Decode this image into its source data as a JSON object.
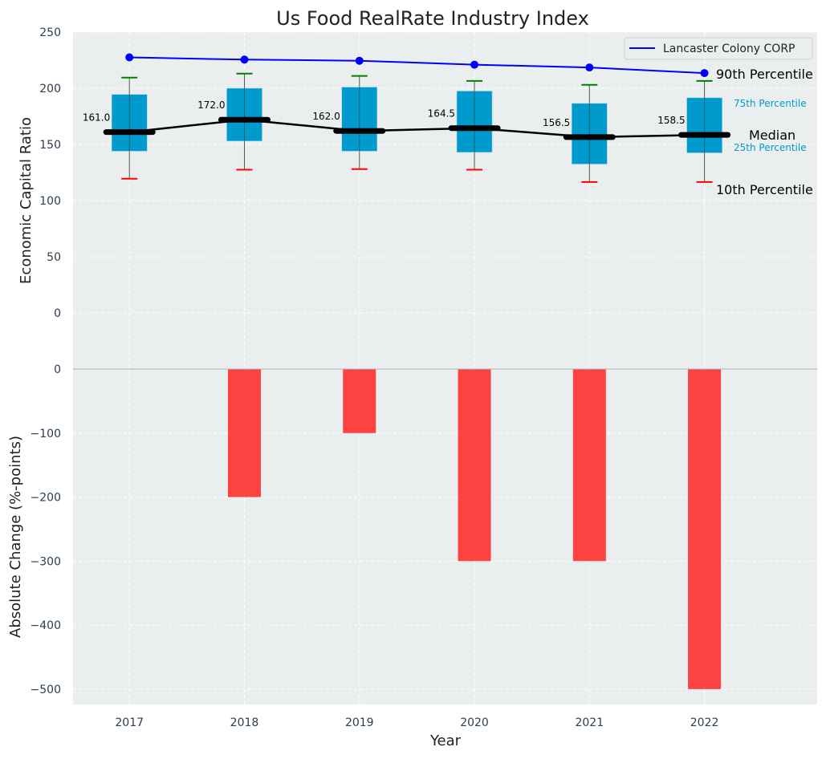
{
  "chart_data": [
    {
      "type": "box",
      "title": "Us Food RealRate Industry Index",
      "ylabel": "Economic Capital Ratio",
      "ylim": [
        -50,
        250
      ],
      "yticks": [
        0,
        50,
        100,
        150,
        200,
        250
      ],
      "categories": [
        "2017",
        "2018",
        "2019",
        "2020",
        "2021",
        "2022"
      ],
      "p10": [
        119.5,
        127.5,
        128,
        127.5,
        116.5,
        116.5
      ],
      "p25": [
        144,
        153,
        144,
        143,
        132.5,
        142.5
      ],
      "median": [
        161.0,
        172.0,
        162.0,
        164.5,
        156.5,
        158.5
      ],
      "median_labels": [
        "161.0",
        "172.0",
        "162.0",
        "164.5",
        "156.5",
        "158.5"
      ],
      "p75": [
        194.5,
        200,
        201,
        197.5,
        186.5,
        191.5
      ],
      "p90": [
        209.5,
        213,
        211,
        206.5,
        203,
        206.5
      ],
      "series": [
        {
          "name": "Lancaster Colony CORP",
          "color": "#0000ff",
          "values": [
            227.5,
            225.5,
            224.5,
            221,
            218.5,
            213.5
          ]
        }
      ],
      "legend": {
        "entries": [
          "Lancaster Colony CORP"
        ],
        "placement": "top-right"
      },
      "annotations": {
        "p90": "90th Percentile",
        "p75": "75th Percentile",
        "median": "Median",
        "p25": "25th Percentile",
        "p10": "10th Percentile"
      },
      "colors": {
        "box": "#009ACD",
        "p90_cap": "#008000",
        "p10_cap": "#ff0000",
        "median": "#000000",
        "background": "#EBEEEE"
      },
      "grid": true
    },
    {
      "type": "bar",
      "ylabel": "Absolute Change (%-points)",
      "xlabel": "Year",
      "ylim": [
        -524,
        0
      ],
      "yticks": [
        0,
        -100,
        -200,
        -300,
        -400,
        -500
      ],
      "ytick_labels": [
        "0",
        "−100",
        "−200",
        "−300",
        "−400",
        "−500"
      ],
      "categories": [
        "2017",
        "2018",
        "2019",
        "2020",
        "2021",
        "2022"
      ],
      "values": [
        0,
        -200,
        -100,
        -300,
        -300,
        -500
      ],
      "color": "#ff2a2a",
      "grid": true
    }
  ],
  "xlim": [
    2016.51,
    2022.98
  ]
}
